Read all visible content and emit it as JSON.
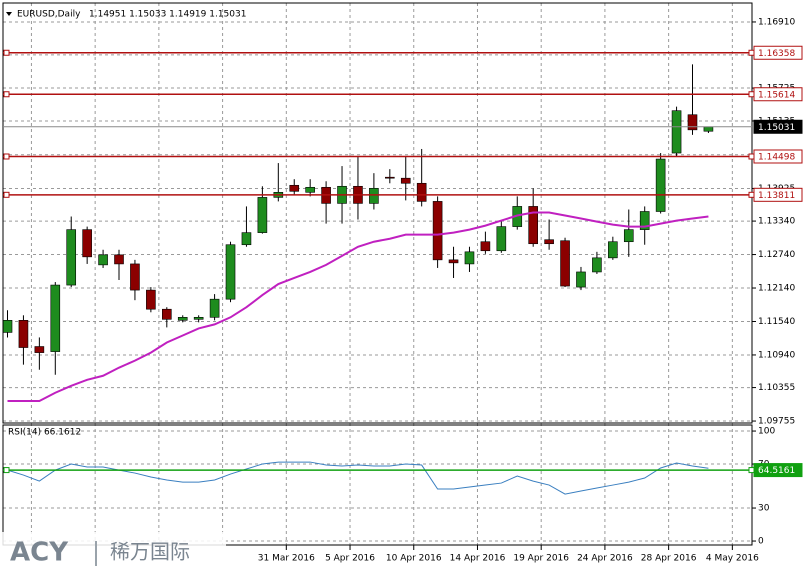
{
  "chart_data": [
    {
      "type": "candlestick",
      "title": "EURUSD,Daily",
      "quote": "1.14951 1.15033 1.14919 1.15031",
      "categories": [
        null,
        null,
        null,
        null,
        null,
        null,
        null,
        null,
        null,
        null,
        null,
        null,
        null,
        null,
        null,
        null,
        null,
        "31 Mar 2016",
        null,
        null,
        null,
        "5 Apr 2016",
        null,
        null,
        null,
        "10 Apr 2016",
        null,
        null,
        null,
        "14 Apr 2016",
        null,
        null,
        null,
        "19 Apr 2016",
        null,
        null,
        null,
        "24 Apr 2016",
        null,
        null,
        null,
        "28 Apr 2016",
        null,
        null,
        null,
        "4 May 2016"
      ],
      "open": [
        1.11344,
        1.11561,
        1.11091,
        1.11,
        1.12193,
        1.13187,
        1.12555,
        1.12735,
        1.12572,
        1.12103,
        1.1176,
        1.11561,
        1.11579,
        1.11615,
        1.1194,
        1.12916,
        1.13133,
        1.13765,
        1.13982,
        1.13856,
        1.13946,
        1.13657,
        1.13964,
        1.13657,
        1.14127,
        1.14109,
        1.14018,
        1.13693,
        1.12645,
        1.12572,
        1.1297,
        1.12808,
        1.13241,
        1.13603,
        1.13006,
        1.12988,
        1.12157,
        1.12428,
        1.12681,
        1.1297,
        1.13187,
        1.13512,
        1.1456,
        1.15247,
        1.14951,
        null
      ],
      "high": [
        1.11742,
        1.11651,
        1.11254,
        1.12247,
        1.13422,
        1.13241,
        1.12826,
        1.12826,
        1.12645,
        1.12157,
        1.11796,
        1.11651,
        1.11651,
        1.12031,
        1.1297,
        1.13603,
        1.13964,
        1.1438,
        1.14091,
        1.14091,
        1.14054,
        1.14326,
        1.14506,
        1.14199,
        1.14271,
        1.14506,
        1.14633,
        1.13783,
        1.1288,
        1.1288,
        1.13151,
        1.13349,
        1.13783,
        1.13928,
        1.13368,
        1.13042,
        1.12518,
        1.12789,
        1.1306,
        1.13548,
        1.13603,
        1.1456,
        1.15392,
        1.1615,
        1.15033,
        null
      ],
      "low": [
        1.11254,
        1.10766,
        1.10675,
        1.10585,
        1.12157,
        1.12572,
        1.125,
        1.12284,
        1.11922,
        1.11705,
        1.11434,
        1.11525,
        1.11525,
        1.11561,
        1.11886,
        1.1288,
        1.13115,
        1.13693,
        1.13801,
        1.13783,
        1.13295,
        1.13295,
        1.13368,
        1.13548,
        1.14018,
        1.13711,
        1.13603,
        1.125,
        1.1232,
        1.12428,
        1.12753,
        1.12771,
        1.13187,
        1.1288,
        1.12826,
        1.12157,
        1.12103,
        1.12392,
        1.12645,
        1.12699,
        1.12916,
        1.13476,
        1.14506,
        1.14886,
        1.14919,
        null
      ],
      "close": [
        1.11561,
        1.11073,
        1.10982,
        1.12193,
        1.13187,
        1.12699,
        1.12735,
        1.12572,
        1.12103,
        1.1176,
        1.11579,
        1.11615,
        1.11615,
        1.1194,
        1.12916,
        1.13133,
        1.13765,
        1.13856,
        1.13874,
        1.13946,
        1.13657,
        1.13964,
        1.13657,
        1.13928,
        1.14109,
        1.14018,
        1.13693,
        1.12645,
        1.12591,
        1.12789,
        1.12808,
        1.13241,
        1.13603,
        1.12934,
        1.12934,
        1.12175,
        1.12428,
        1.12681,
        1.1297,
        1.13187,
        1.13512,
        1.14452,
        1.15319,
        1.14976,
        1.15031,
        null
      ],
      "up_color": "#1e8c1e",
      "down_color": "#8b0000",
      "overlay": {
        "color": "#c020c0",
        "values": [
          1.10115,
          1.10115,
          1.10115,
          1.10262,
          1.10386,
          1.10495,
          1.10567,
          1.10712,
          1.10838,
          1.10982,
          1.11163,
          1.11289,
          1.11416,
          1.11488,
          1.11615,
          1.11796,
          1.12013,
          1.12211,
          1.1232,
          1.12428,
          1.12555,
          1.12717,
          1.1288,
          1.1297,
          1.13024,
          1.13097,
          1.13097,
          1.13097,
          1.13133,
          1.13187,
          1.13259,
          1.13349,
          1.1344,
          1.13494,
          1.13494,
          1.1344,
          1.13386,
          1.13331,
          1.13277,
          1.13241,
          1.13241,
          1.13295,
          1.13349,
          1.13386,
          1.13422,
          null
        ]
      },
      "levels": [
        {
          "value": 1.16358,
          "color": "#b01010"
        },
        {
          "value": 1.15614,
          "color": "#b01010"
        },
        {
          "value": 1.14498,
          "color": "#b01010"
        },
        {
          "value": 1.13811,
          "color": "#b01010"
        }
      ],
      "last_price": 1.15031,
      "ylim": [
        1.0972,
        1.1725
      ],
      "yticks": [
        {
          "value": 1.1691,
          "label": "1.16910"
        },
        {
          "value": 1.1632,
          "label": "1.16320"
        },
        1.15725,
        1.15135,
        {
          "value": 1.1453,
          "label": "1.14530"
        },
        1.13925,
        {
          "value": 1.1334,
          "label": "1.13340"
        },
        {
          "value": 1.1274,
          "label": "1.12740"
        },
        {
          "value": 1.1214,
          "label": "1.12140"
        },
        {
          "value": 1.1154,
          "label": "1.11540"
        },
        {
          "value": 1.1094,
          "label": "1.10940"
        },
        1.10355,
        1.09755
      ],
      "grid": true
    },
    {
      "type": "line",
      "label": "RSI(14) 66.1612",
      "color": "#3a7fc0",
      "values": [
        64.5,
        60.0,
        54.5,
        64.5,
        70.0,
        67.3,
        67.3,
        64.5,
        61.8,
        58.2,
        55.5,
        53.6,
        53.6,
        55.5,
        60.9,
        65.5,
        70.0,
        71.8,
        71.8,
        71.8,
        69.1,
        68.2,
        69.1,
        68.2,
        68.2,
        70.0,
        69.1,
        47.3,
        47.3,
        49.1,
        50.9,
        52.7,
        59.1,
        54.5,
        50.9,
        42.7,
        45.5,
        48.2,
        50.9,
        53.6,
        57.3,
        66.4,
        70.9,
        68.2,
        66.2,
        null
      ],
      "ylim": [
        -3.6,
        105.5
      ],
      "yticks": [
        100,
        70,
        30,
        0
      ],
      "level": {
        "value": 64.5161,
        "color": "#10a010"
      },
      "grid": true
    }
  ],
  "watermark": {
    "brand": "ACY",
    "name": "稀万国际"
  }
}
